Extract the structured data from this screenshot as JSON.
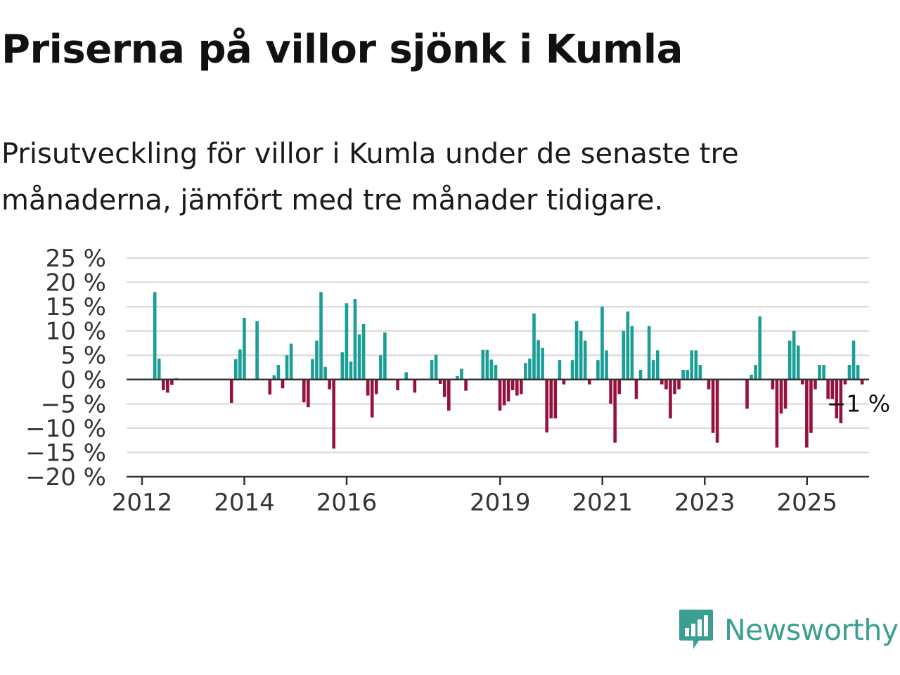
{
  "title": "Priserna på villor sjönk i Kumla",
  "subtitle": "Prisutveckling för villor i Kumla under de senaste tre månaderna, jämfört med tre månader tidigare.",
  "brand": {
    "name": "Newsworthy",
    "color": "#3a9e92",
    "icon": "newsworthy-logo-icon"
  },
  "colors": {
    "positive": "#1a9e96",
    "negative": "#96113c",
    "grid": "#dddddd",
    "axis": "#333333"
  },
  "chart_data": {
    "type": "bar",
    "title": "Priserna på villor sjönk i Kumla",
    "xlabel": "",
    "ylabel": "",
    "ylim": [
      -20,
      25
    ],
    "y_ticks": [
      25,
      20,
      15,
      10,
      5,
      0,
      -5,
      -10,
      -15,
      -20
    ],
    "y_tick_labels": [
      "25 %",
      "20 %",
      "15 %",
      "10 %",
      "5 %",
      "0 %",
      "−5 %",
      "−10 %",
      "−15 %",
      "−20 %"
    ],
    "x_ticks": [
      2012,
      2014,
      2016,
      2019,
      2021,
      2023,
      2025
    ],
    "x_tick_labels": [
      "2012",
      "2014",
      "2016",
      "2019",
      "2021",
      "2023",
      "2025"
    ],
    "x_start": 2011.75,
    "step": 0.0833,
    "grid": true,
    "last_value_label": "−1 %",
    "values": [
      0,
      0,
      0,
      0,
      0,
      0,
      18,
      4.3,
      -2.2,
      -2.7,
      -1.1,
      0.3,
      0,
      0,
      0,
      0,
      0,
      0,
      0,
      0,
      0,
      0,
      0,
      0,
      -4.8,
      4.2,
      6.2,
      12.7,
      0,
      0,
      12,
      0,
      0,
      -3.1,
      0.9,
      3,
      -1.8,
      5,
      7.4,
      0,
      0,
      -4.7,
      -5.7,
      4.2,
      8,
      18,
      2.6,
      -2,
      -14.2,
      0,
      5.6,
      15.7,
      3.7,
      16.6,
      9.3,
      11.4,
      -3.3,
      -7.8,
      -3,
      5,
      9.7,
      0,
      0,
      -2.2,
      0,
      1.5,
      0,
      -2.7,
      0,
      0,
      0,
      4,
      5.1,
      -0.9,
      -3.6,
      -6.4,
      0,
      0.7,
      2.2,
      -2.3,
      0,
      0,
      0,
      6.1,
      6.1,
      4.1,
      3,
      -6.4,
      -5.3,
      -4.5,
      -2.2,
      -3.3,
      -3,
      3.4,
      4.3,
      13.6,
      8.1,
      6.5,
      -10.9,
      -8,
      -8,
      4,
      -1,
      0,
      4,
      12,
      10,
      8,
      -1,
      0,
      4,
      15,
      6,
      -5,
      -13,
      -3,
      10,
      14,
      11,
      -4,
      2,
      0,
      11,
      4,
      6,
      -1,
      -2,
      -8,
      -3,
      -2,
      2,
      2,
      6,
      6,
      3,
      0,
      -2,
      -11,
      -13,
      0,
      0,
      0,
      0,
      0,
      0,
      -6,
      1,
      3,
      13,
      0,
      0,
      -2,
      -14,
      -7,
      -6,
      8,
      10,
      7,
      -1,
      -14,
      -11,
      -2,
      3,
      3,
      -4,
      -4,
      -8,
      -9,
      -1,
      3,
      8,
      3,
      -1
    ]
  }
}
